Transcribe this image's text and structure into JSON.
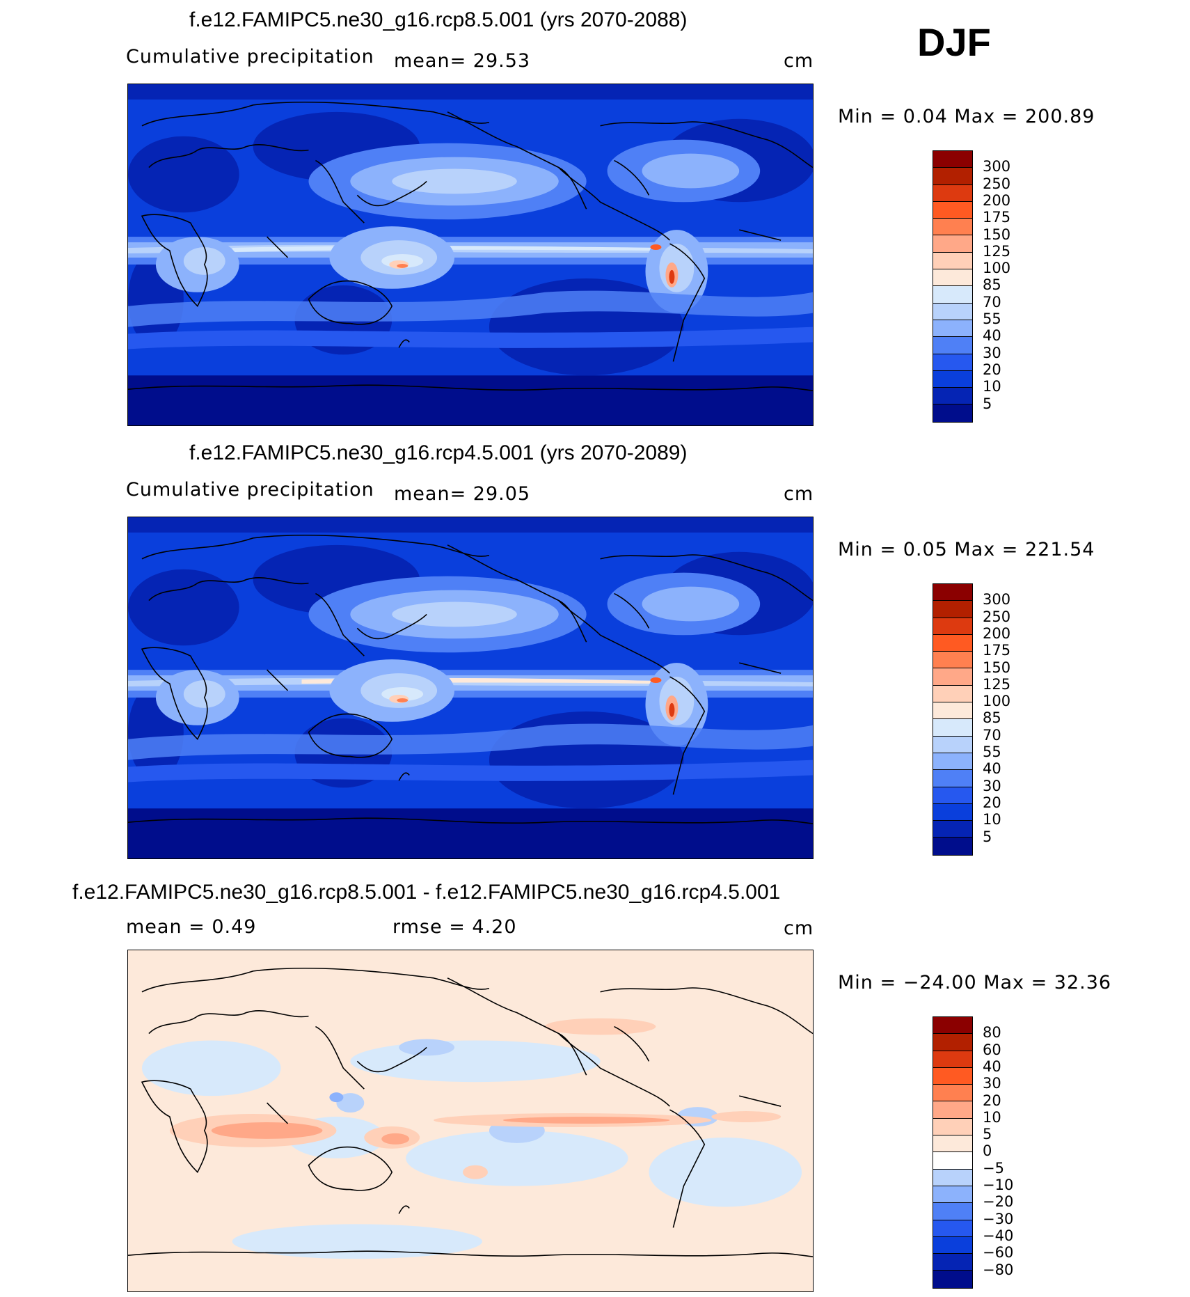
{
  "season": "DJF",
  "panels": [
    {
      "title": "f.e12.FAMIPC5.ne30_g16.rcp8.5.001 (yrs 2070-2088)",
      "left_label": "Cumulative precipitation",
      "mid_label": "mean=   29.53",
      "units": "cm",
      "min_max": "Min =    0.04  Max  =  200.89",
      "colorbar": {
        "labels": [
          "300",
          "250",
          "200",
          "175",
          "150",
          "125",
          "100",
          "85",
          "70",
          "55",
          "40",
          "30",
          "20",
          "10",
          "5"
        ],
        "colors": [
          "#8b0000",
          "#b22000",
          "#dd3a10",
          "#ff5a22",
          "#ff8050",
          "#ffa888",
          "#ffd0b8",
          "#fde9da",
          "#d7e9fb",
          "#b8d2fb",
          "#8cb2fc",
          "#4f80f6",
          "#2658ef",
          "#0a3fdc",
          "#0524b4",
          "#000d8c"
        ]
      }
    },
    {
      "title": "f.e12.FAMIPC5.ne30_g16.rcp4.5.001 (yrs 2070-2089)",
      "left_label": "Cumulative precipitation",
      "mid_label": "mean=   29.05",
      "units": "cm",
      "min_max": "Min =    0.05  Max  =  221.54",
      "colorbar": {
        "labels": [
          "300",
          "250",
          "200",
          "175",
          "150",
          "125",
          "100",
          "85",
          "70",
          "55",
          "40",
          "30",
          "20",
          "10",
          "5"
        ],
        "colors": [
          "#8b0000",
          "#b22000",
          "#dd3a10",
          "#ff5a22",
          "#ff8050",
          "#ffa888",
          "#ffd0b8",
          "#fde9da",
          "#d7e9fb",
          "#b8d2fb",
          "#8cb2fc",
          "#4f80f6",
          "#2658ef",
          "#0a3fdc",
          "#0524b4",
          "#000d8c"
        ]
      }
    },
    {
      "title": "f.e12.FAMIPC5.ne30_g16.rcp8.5.001 - f.e12.FAMIPC5.ne30_g16.rcp4.5.001",
      "left_label": "mean =    0.49",
      "mid_label": "rmse =    4.20",
      "units": "cm",
      "min_max": "Min = −24.00  Max  =   32.36",
      "colorbar": {
        "labels": [
          "80",
          "60",
          "40",
          "30",
          "20",
          "10",
          "5",
          "0",
          "−5",
          "−10",
          "−20",
          "−30",
          "−40",
          "−60",
          "−80"
        ],
        "colors": [
          "#8b0000",
          "#b22000",
          "#dd3a10",
          "#ff5a22",
          "#ff8050",
          "#ffa888",
          "#ffd0b8",
          "#fde9da",
          "#ffffff",
          "#b8d2fb",
          "#8cb2fc",
          "#4f80f6",
          "#2658ef",
          "#0a3fdc",
          "#0524b4",
          "#000d8c"
        ]
      }
    }
  ]
}
